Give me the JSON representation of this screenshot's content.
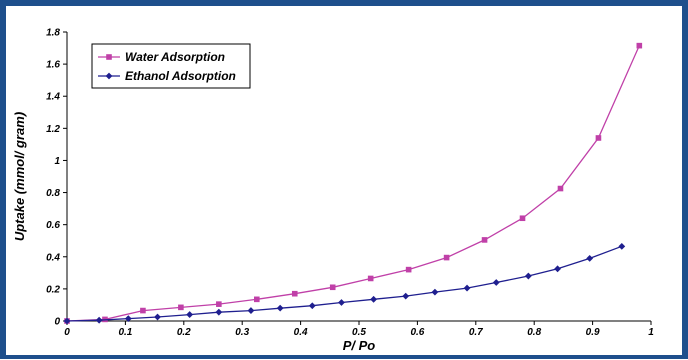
{
  "chart_data": {
    "type": "line",
    "xlabel": "P/ Po",
    "ylabel": "Uptake (mmol/ gram)",
    "xlim": [
      0,
      1
    ],
    "ylim": [
      0,
      1.8
    ],
    "x_ticks": [
      "0",
      "0.1",
      "0.2",
      "0.3",
      "0.4",
      "0.5",
      "0.6",
      "0.7",
      "0.8",
      "0.9",
      "1"
    ],
    "y_ticks": [
      "0",
      "0.2",
      "0.4",
      "0.6",
      "0.8",
      "1",
      "1.2",
      "1.4",
      "1.6",
      "1.8"
    ],
    "grid": false,
    "legend_position": "top-left",
    "series": [
      {
        "name": "Water Adsorption",
        "color": "#c040a8",
        "marker": "square",
        "x": [
          0.0,
          0.065,
          0.13,
          0.195,
          0.26,
          0.325,
          0.39,
          0.455,
          0.52,
          0.585,
          0.65,
          0.715,
          0.78,
          0.845,
          0.91,
          0.98
        ],
        "y": [
          0.0,
          0.01,
          0.065,
          0.085,
          0.105,
          0.135,
          0.17,
          0.21,
          0.265,
          0.32,
          0.395,
          0.505,
          0.64,
          0.825,
          1.14,
          1.715
        ]
      },
      {
        "name": "Ethanol Adsorption",
        "color": "#1f1f8f",
        "marker": "diamond",
        "x": [
          0.0,
          0.055,
          0.105,
          0.155,
          0.21,
          0.26,
          0.315,
          0.365,
          0.42,
          0.47,
          0.525,
          0.58,
          0.63,
          0.685,
          0.735,
          0.79,
          0.84,
          0.895,
          0.95
        ],
        "y": [
          0.0,
          0.005,
          0.015,
          0.025,
          0.04,
          0.055,
          0.065,
          0.08,
          0.095,
          0.115,
          0.135,
          0.155,
          0.18,
          0.205,
          0.24,
          0.28,
          0.325,
          0.39,
          0.465
        ]
      }
    ]
  }
}
